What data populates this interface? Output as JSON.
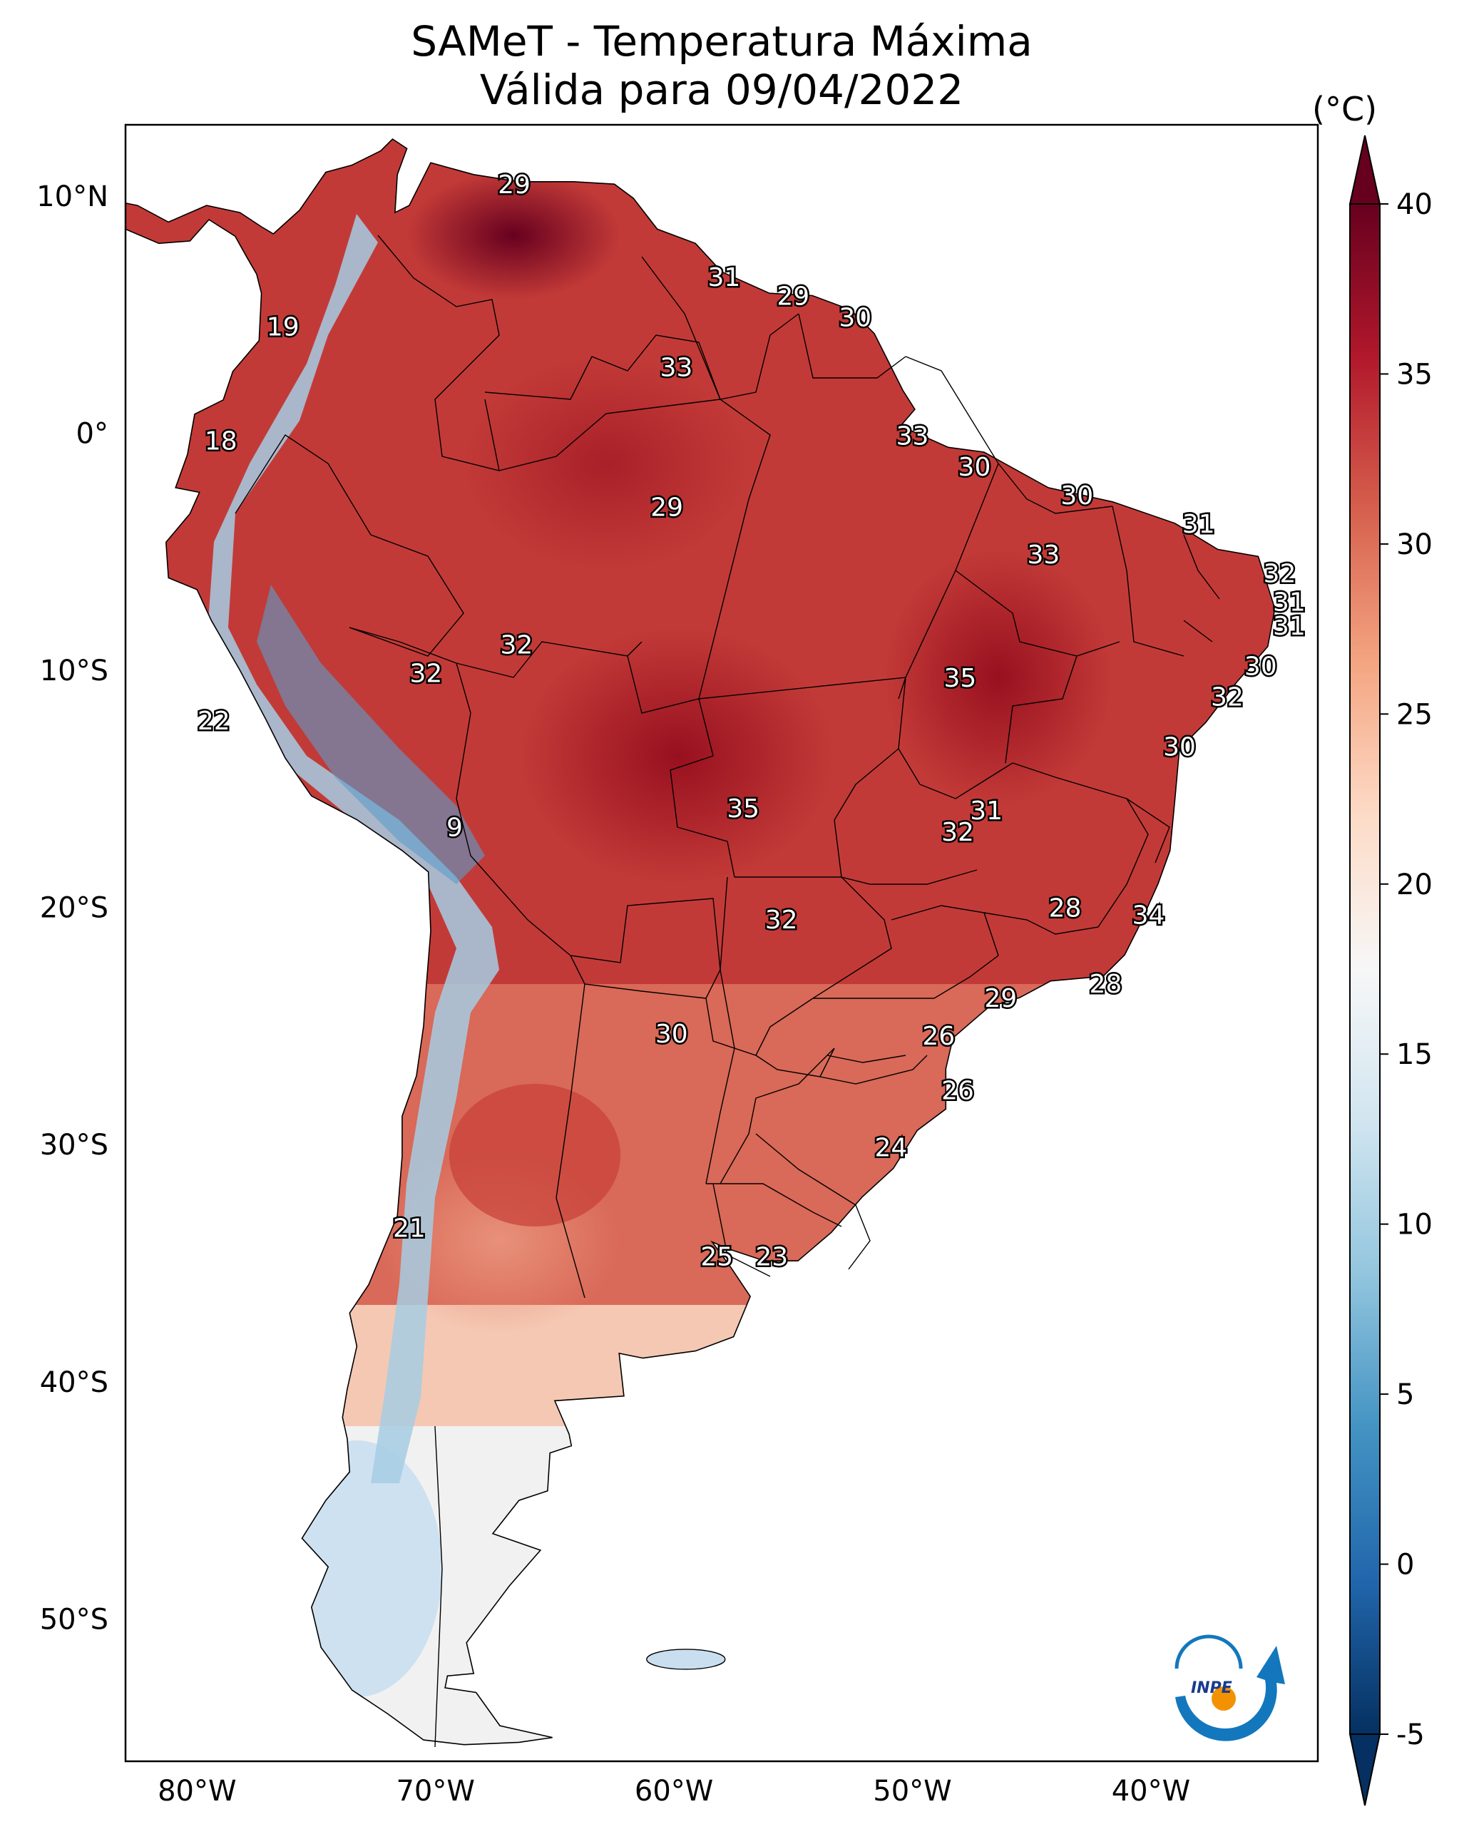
{
  "title": {
    "line1": "SAMeT - Temperatura Máxima",
    "line2": "Válida para 09/04/2022"
  },
  "colorbar": {
    "unit": "(°C)",
    "ticks": [
      "40",
      "35",
      "30",
      "25",
      "20",
      "15",
      "10",
      "5",
      "0",
      "-5"
    ],
    "range": [
      -5,
      40
    ],
    "colormap": "RdBu_r"
  },
  "axes": {
    "lat_labels": [
      "10°N",
      "0°",
      "10°S",
      "20°S",
      "30°S",
      "40°S",
      "50°S"
    ],
    "lon_labels": [
      "80°W",
      "70°W",
      "60°W",
      "50°W",
      "40°W"
    ],
    "lon_range": [
      -83,
      -33
    ],
    "lat_range": [
      -56,
      13
    ]
  },
  "temperature_labels": [
    {
      "v": "29",
      "lon": -66.7,
      "lat": 10.5
    },
    {
      "v": "31",
      "lon": -57.9,
      "lat": 6.6
    },
    {
      "v": "29",
      "lon": -55.0,
      "lat": 5.8
    },
    {
      "v": "30",
      "lon": -52.4,
      "lat": 4.9
    },
    {
      "v": "19",
      "lon": -76.4,
      "lat": 4.5
    },
    {
      "v": "33",
      "lon": -59.9,
      "lat": 2.8
    },
    {
      "v": "18",
      "lon": -79.0,
      "lat": -0.3
    },
    {
      "v": "33",
      "lon": -50.0,
      "lat": -0.1
    },
    {
      "v": "30",
      "lon": -47.4,
      "lat": -1.4
    },
    {
      "v": "30",
      "lon": -43.1,
      "lat": -2.6
    },
    {
      "v": "29",
      "lon": -60.3,
      "lat": -3.1
    },
    {
      "v": "31",
      "lon": -38.0,
      "lat": -3.8
    },
    {
      "v": "33",
      "lon": -44.5,
      "lat": -5.1
    },
    {
      "v": "32",
      "lon": -34.6,
      "lat": -5.9
    },
    {
      "v": "31",
      "lon": -34.2,
      "lat": -7.1
    },
    {
      "v": "31",
      "lon": -34.2,
      "lat": -8.1
    },
    {
      "v": "32",
      "lon": -66.6,
      "lat": -8.9
    },
    {
      "v": "32",
      "lon": -70.4,
      "lat": -10.1
    },
    {
      "v": "30",
      "lon": -35.4,
      "lat": -9.8
    },
    {
      "v": "35",
      "lon": -48.0,
      "lat": -10.3
    },
    {
      "v": "32",
      "lon": -36.8,
      "lat": -11.1
    },
    {
      "v": "22",
      "lon": -79.3,
      "lat": -12.1
    },
    {
      "v": "30",
      "lon": -38.8,
      "lat": -13.2
    },
    {
      "v": "35",
      "lon": -57.1,
      "lat": -15.8
    },
    {
      "v": "31",
      "lon": -46.9,
      "lat": -15.9
    },
    {
      "v": "32",
      "lon": -48.1,
      "lat": -16.8
    },
    {
      "v": "9",
      "lon": -69.2,
      "lat": -16.6
    },
    {
      "v": "28",
      "lon": -43.6,
      "lat": -20.0
    },
    {
      "v": "34",
      "lon": -40.1,
      "lat": -20.3
    },
    {
      "v": "32",
      "lon": -55.5,
      "lat": -20.5
    },
    {
      "v": "28",
      "lon": -41.9,
      "lat": -23.2
    },
    {
      "v": "29",
      "lon": -46.3,
      "lat": -23.8
    },
    {
      "v": "30",
      "lon": -60.1,
      "lat": -25.3
    },
    {
      "v": "26",
      "lon": -48.9,
      "lat": -25.4
    },
    {
      "v": "26",
      "lon": -48.1,
      "lat": -27.7
    },
    {
      "v": "24",
      "lon": -50.9,
      "lat": -30.1
    },
    {
      "v": "21",
      "lon": -71.1,
      "lat": -33.5
    },
    {
      "v": "25",
      "lon": -58.2,
      "lat": -34.7
    },
    {
      "v": "23",
      "lon": -55.9,
      "lat": -34.7
    }
  ],
  "logo": {
    "text": "INPE"
  }
}
